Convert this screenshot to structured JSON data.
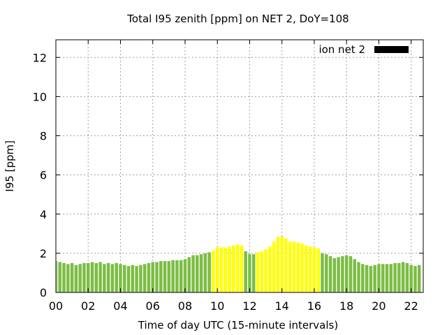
{
  "chart_data": {
    "type": "bar",
    "title": "Total I95 zenith [ppm] on NET 2, DoY=108",
    "xlabel": "Time of day UTC (15-minute intervals)",
    "ylabel": "I95 [ppm]",
    "xlim": [
      0,
      22.75
    ],
    "ylim": [
      0,
      12.9
    ],
    "xticks": [
      "00",
      "02",
      "04",
      "06",
      "08",
      "10",
      "12",
      "14",
      "16",
      "18",
      "20",
      "22"
    ],
    "yticks": [
      "0",
      "2",
      "4",
      "6",
      "8",
      "10",
      "12"
    ],
    "grid": true,
    "legend_position": "top-right",
    "interval_hours": 0.25,
    "colors": {
      "normal": "#7cbd45",
      "highlight": "#ffff00",
      "legend": "#000000"
    },
    "series": [
      {
        "name": "ion net 2",
        "values": [
          1.6,
          1.55,
          1.5,
          1.45,
          1.5,
          1.4,
          1.45,
          1.5,
          1.5,
          1.55,
          1.5,
          1.55,
          1.45,
          1.5,
          1.45,
          1.5,
          1.45,
          1.4,
          1.35,
          1.4,
          1.35,
          1.4,
          1.45,
          1.5,
          1.55,
          1.55,
          1.6,
          1.6,
          1.6,
          1.65,
          1.65,
          1.65,
          1.7,
          1.8,
          1.9,
          1.9,
          1.95,
          2.0,
          2.05,
          2.15,
          2.3,
          2.3,
          2.3,
          2.35,
          2.4,
          2.45,
          2.4,
          2.1,
          1.95,
          1.95,
          2.05,
          2.1,
          2.2,
          2.35,
          2.6,
          2.85,
          2.85,
          2.75,
          2.6,
          2.6,
          2.55,
          2.5,
          2.4,
          2.35,
          2.3,
          2.25,
          2.0,
          1.95,
          1.85,
          1.75,
          1.8,
          1.85,
          1.9,
          1.85,
          1.7,
          1.55,
          1.45,
          1.4,
          1.35,
          1.4,
          1.45,
          1.45,
          1.45,
          1.45,
          1.5,
          1.5,
          1.55,
          1.5,
          1.4,
          1.35,
          1.4
        ],
        "highlight_ranges": [
          [
            39,
            46
          ],
          [
            50,
            65
          ]
        ]
      }
    ]
  }
}
